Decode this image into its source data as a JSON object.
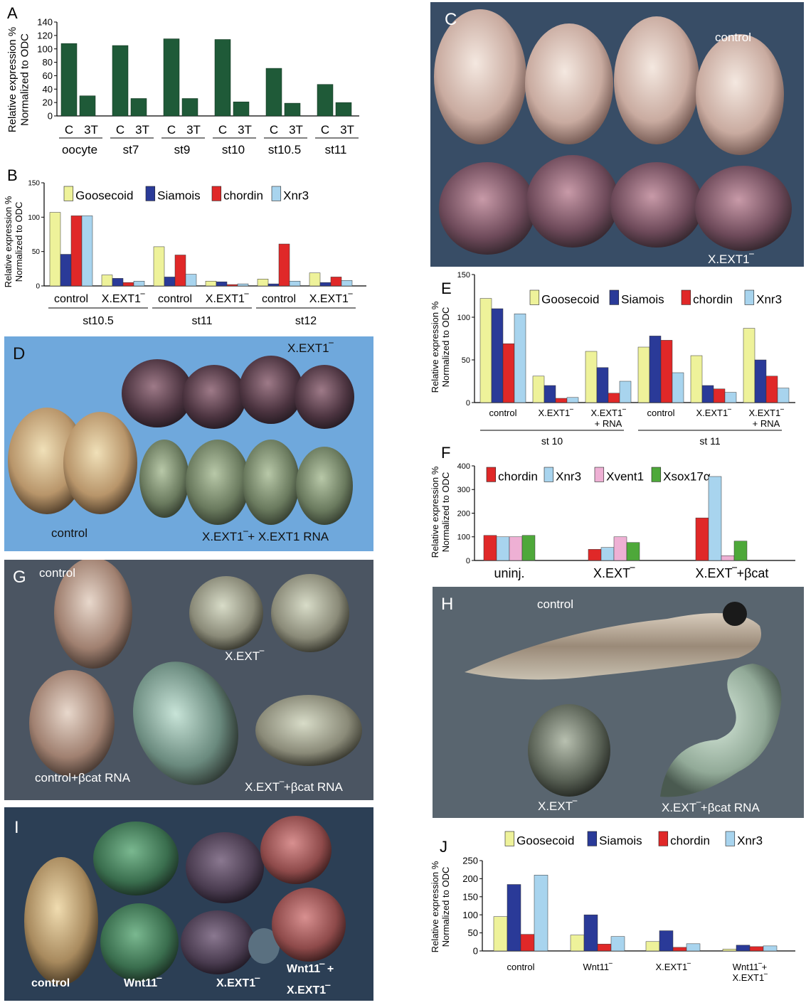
{
  "colors": {
    "dark_green": "#1f5a38",
    "yellow": "#eef29a",
    "blue": "#2a3a98",
    "red": "#e02828",
    "lightblue": "#a8d4ee",
    "pink": "#eeb0d4",
    "green": "#4ea83a"
  },
  "chart_data": [
    {
      "panel": "A",
      "type": "bar",
      "ylabel": "Relative expression %\nNormalized to ODC",
      "ylim": [
        0,
        140
      ],
      "yticks": [
        0,
        20,
        40,
        60,
        80,
        100,
        120,
        140
      ],
      "bar_labels": [
        "C",
        "3T"
      ],
      "groups": [
        "oocyte",
        "st7",
        "st9",
        "st10",
        "st10.5",
        "st11"
      ],
      "values": [
        [
          108,
          30
        ],
        [
          105,
          26
        ],
        [
          115,
          26
        ],
        [
          114,
          21
        ],
        [
          71,
          19
        ],
        [
          47,
          20
        ]
      ]
    },
    {
      "panel": "B",
      "type": "bar",
      "ylabel": "Relative expression %\nNormalized to ODC",
      "ylim": [
        0,
        150
      ],
      "yticks": [
        0,
        50,
        100,
        150
      ],
      "series_names": [
        "Goosecoid",
        "Siamois",
        "chordin",
        "Xnr3"
      ],
      "categories": [
        "control",
        "X.EXT1‾",
        "control",
        "X.EXT1‾",
        "control",
        "X.EXT1‾"
      ],
      "stages": [
        "st10.5",
        "st11",
        "st12"
      ],
      "values": [
        [
          107,
          46,
          102,
          102
        ],
        [
          16,
          11,
          5,
          7
        ],
        [
          57,
          13,
          45,
          17
        ],
        [
          7,
          6,
          2,
          3
        ],
        [
          10,
          3,
          61,
          7
        ],
        [
          19,
          5,
          13,
          8
        ]
      ]
    },
    {
      "panel": "E",
      "type": "bar",
      "ylabel": "Relative expression %\nNormalized to ODC",
      "ylim": [
        0,
        150
      ],
      "yticks": [
        0,
        50,
        100,
        150
      ],
      "series_names": [
        "Goosecoid",
        "Siamois",
        "chordin",
        "Xnr3"
      ],
      "categories": [
        "control",
        "X.EXT1‾",
        "X.EXT1‾\n+ RNA",
        "control",
        "X.EXT1‾",
        "X.EXT1‾\n+ RNA"
      ],
      "stages": [
        "st 10",
        "st 11"
      ],
      "values": [
        [
          122,
          110,
          69,
          104
        ],
        [
          31,
          20,
          5,
          6
        ],
        [
          60,
          41,
          11,
          25
        ],
        [
          65,
          78,
          73,
          35
        ],
        [
          55,
          20,
          16,
          12
        ],
        [
          87,
          50,
          31,
          17
        ]
      ]
    },
    {
      "panel": "F",
      "type": "bar",
      "ylabel": "Relative expression %\nNormalized to ODC",
      "ylim": [
        0,
        400
      ],
      "yticks": [
        0,
        100,
        200,
        300,
        400
      ],
      "series_names": [
        "chordin",
        "Xnr3",
        "Xvent1",
        "Xsox17α"
      ],
      "categories": [
        "uninj.",
        "X.EXT‾",
        "X.EXT‾+βcat"
      ],
      "values": [
        [
          106,
          100,
          100,
          106
        ],
        [
          47,
          55,
          100,
          76
        ],
        [
          180,
          355,
          20,
          82
        ]
      ]
    },
    {
      "panel": "J",
      "type": "bar",
      "ylabel": "Relative expression %\nNormalized to ODC",
      "ylim": [
        0,
        250
      ],
      "yticks": [
        0,
        50,
        100,
        150,
        200,
        250
      ],
      "series_names": [
        "Goosecoid",
        "Siamois",
        "chordin",
        "Xnr3"
      ],
      "categories": [
        "control",
        "Wnt11‾",
        "X.EXT1‾",
        "Wnt11‾+\nX.EXT1‾"
      ],
      "values": [
        [
          95,
          184,
          46,
          210
        ],
        [
          44,
          100,
          19,
          40
        ],
        [
          26,
          56,
          10,
          20
        ],
        [
          5,
          16,
          12,
          14
        ]
      ]
    }
  ],
  "photos": {
    "C": {
      "letter": "C",
      "labels": [
        "control",
        "X.EXT1‾"
      ]
    },
    "D": {
      "letter": "D",
      "labels": [
        "X.EXT1‾",
        "control",
        "X.EXT1‾+ X.EXT1 RNA"
      ]
    },
    "G": {
      "letter": "G",
      "labels": [
        "control",
        "X.EXT‾",
        "control+βcat RNA",
        "X.EXT‾+βcat RNA"
      ]
    },
    "H": {
      "letter": "H",
      "labels": [
        "control",
        "X.EXT‾",
        "X.EXT‾+βcat RNA"
      ]
    },
    "I": {
      "letter": "I",
      "labels": [
        "control",
        "Wnt11‾",
        "X.EXT1‾",
        "Wnt11‾ +",
        "X.EXT1‾"
      ]
    }
  }
}
